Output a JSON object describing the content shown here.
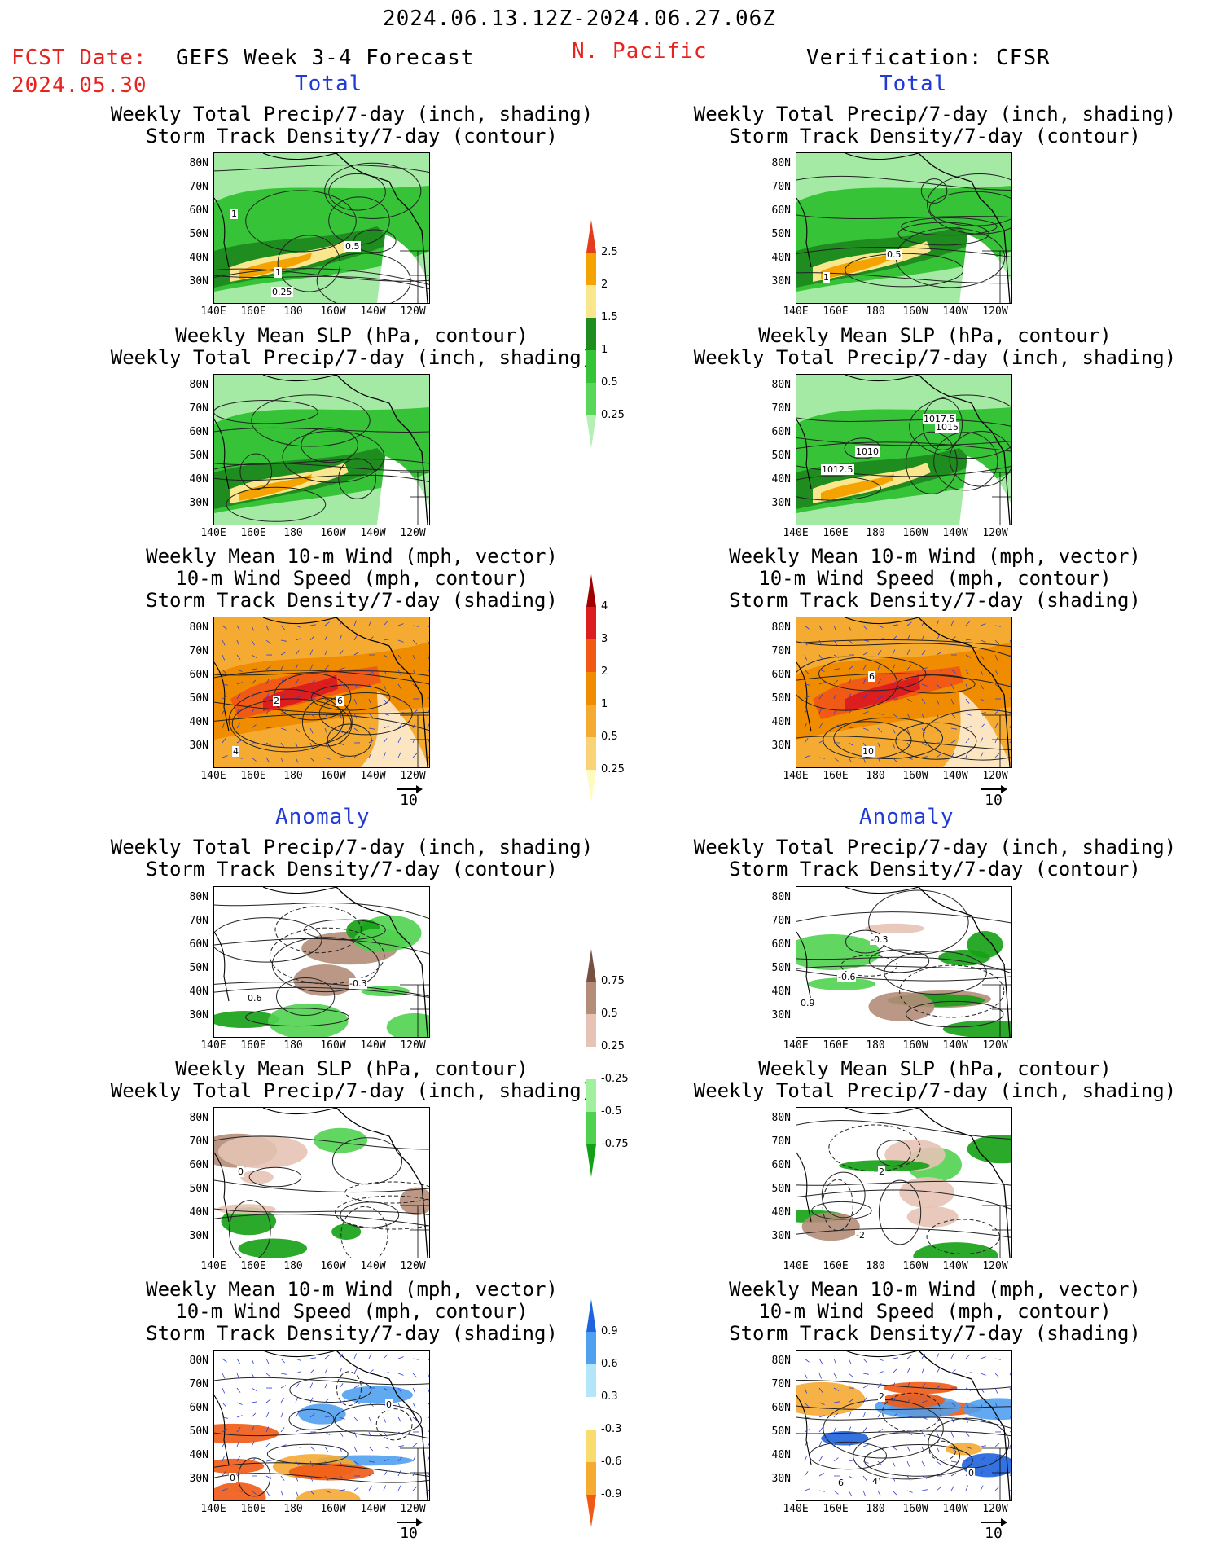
{
  "header": {
    "period": "2024.06.13.12Z-2024.06.27.06Z",
    "fcst_label": "FCST Date:",
    "fcst_date": "2024.05.30",
    "forecast_title": "GEFS Week 3-4 Forecast",
    "region": "N. Pacific",
    "verification": "Verification: CFSR",
    "total_left": "Total",
    "total_right": "Total",
    "anomaly_left": "Anomaly",
    "anomaly_right": "Anomaly"
  },
  "titles": {
    "precip_track": [
      "Weekly Total Precip/7-day (inch, shading)",
      "Storm Track Density/7-day (contour)"
    ],
    "slp_precip": [
      "Weekly Mean SLP (hPa, contour)",
      "Weekly Total Precip/7-day (inch, shading)"
    ],
    "wind": [
      "Weekly Mean 10-m Wind (mph, vector)",
      "10-m Wind Speed (mph, contour)",
      "Storm Track Density/7-day (shading)"
    ]
  },
  "axes": {
    "lat_ticks": [
      "80N",
      "70N",
      "60N",
      "50N",
      "40N",
      "30N"
    ],
    "lon_ticks": [
      "140E",
      "160E",
      "180",
      "160W",
      "140W",
      "120W"
    ]
  },
  "colorbars": {
    "precip_total": {
      "labels": [
        "0.25",
        "0.5",
        "1",
        "1.5",
        "2",
        "2.5"
      ],
      "colors": [
        "#b4f0b4",
        "#5ad75a",
        "#37c337",
        "#1e8c1e",
        "#fae68c",
        "#f5a300",
        "#e63c1e"
      ]
    },
    "track_total": {
      "labels": [
        "0.25",
        "0.5",
        "1",
        "2",
        "3",
        "4"
      ],
      "colors": [
        "#fffabe",
        "#fad278",
        "#f5aa32",
        "#f08c00",
        "#f05a14",
        "#dc1e1e",
        "#a00000"
      ]
    },
    "precip_anom": {
      "labels": [
        "0.75",
        "0.5",
        "0.25",
        "-0.25",
        "-0.5",
        "-0.75"
      ],
      "colors": [
        "#14a014",
        "#50d250",
        "#a0f0a0",
        "#ffffff",
        "#e6c3b4",
        "#b48c78",
        "#785041"
      ]
    },
    "track_anom": {
      "labels": [
        "0.9",
        "0.6",
        "0.3",
        "-0.3",
        "-0.6",
        "-0.9"
      ],
      "colors": [
        "#f05a14",
        "#f5aa32",
        "#fadc6e",
        "#ffffff",
        "#b4e6fa",
        "#50a0f0",
        "#1e64dc"
      ]
    }
  },
  "vector_ref": {
    "value": "10"
  },
  "panels": {
    "p1l": {
      "contour_labels": [
        "1",
        "0.5",
        "1",
        "0.25"
      ]
    },
    "p1r": {
      "contour_labels": [
        "0.5",
        "1"
      ]
    },
    "p2r": {
      "contour_labels": [
        "1017.5",
        "1015",
        "1010",
        "1012.5"
      ]
    },
    "p3l": {
      "contour_labels": [
        "2",
        "6",
        "4"
      ]
    },
    "p3r": {
      "contour_labels": [
        "6",
        "10"
      ]
    },
    "p4l": {
      "contour_labels": [
        "-0.3",
        "0.6"
      ]
    },
    "p4r": {
      "contour_labels": [
        "-0.3",
        "-0.6",
        "0.9"
      ]
    },
    "p5l": {
      "contour_labels": [
        "0"
      ]
    },
    "p5r": {
      "contour_labels": [
        "2",
        "-2"
      ]
    },
    "p6l": {
      "contour_labels": [
        "0",
        "0"
      ]
    },
    "p6r": {
      "contour_labels": [
        "2",
        "6",
        "4",
        "0"
      ]
    }
  }
}
